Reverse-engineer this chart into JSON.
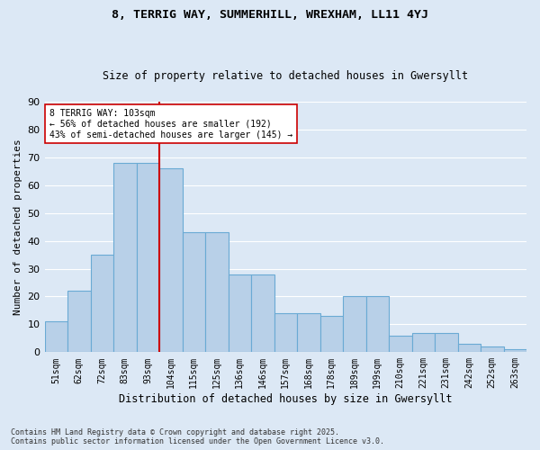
{
  "title1": "8, TERRIG WAY, SUMMERHILL, WREXHAM, LL11 4YJ",
  "title2": "Size of property relative to detached houses in Gwersyllt",
  "xlabel": "Distribution of detached houses by size in Gwersyllt",
  "ylabel": "Number of detached properties",
  "bars": [
    {
      "label": "51sqm",
      "value": 11
    },
    {
      "label": "62sqm",
      "value": 22
    },
    {
      "label": "72sqm",
      "value": 35
    },
    {
      "label": "83sqm",
      "value": 68
    },
    {
      "label": "93sqm",
      "value": 68
    },
    {
      "label": "104sqm",
      "value": 66
    },
    {
      "label": "115sqm",
      "value": 43
    },
    {
      "label": "125sqm",
      "value": 43
    },
    {
      "label": "136sqm",
      "value": 28
    },
    {
      "label": "146sqm",
      "value": 28
    },
    {
      "label": "157sqm",
      "value": 14
    },
    {
      "label": "168sqm",
      "value": 14
    },
    {
      "label": "178sqm",
      "value": 13
    },
    {
      "label": "189sqm",
      "value": 20
    },
    {
      "label": "199sqm",
      "value": 20
    },
    {
      "label": "210sqm",
      "value": 6
    },
    {
      "label": "221sqm",
      "value": 7
    },
    {
      "label": "231sqm",
      "value": 7
    },
    {
      "label": "242sqm",
      "value": 3
    },
    {
      "label": "252sqm",
      "value": 2
    },
    {
      "label": "263sqm",
      "value": 1
    }
  ],
  "bar_color": "#b8d0e8",
  "bar_edge_color": "#6aaad4",
  "vline_index": 5,
  "vline_color": "#cc0000",
  "annotation_text": "8 TERRIG WAY: 103sqm\n← 56% of detached houses are smaller (192)\n43% of semi-detached houses are larger (145) →",
  "annotation_box_color": "#ffffff",
  "annotation_box_edge": "#cc0000",
  "ylim": [
    0,
    90
  ],
  "yticks": [
    0,
    10,
    20,
    30,
    40,
    50,
    60,
    70,
    80,
    90
  ],
  "bg_color": "#dce8f5",
  "grid_color": "#ffffff",
  "footer": "Contains HM Land Registry data © Crown copyright and database right 2025.\nContains public sector information licensed under the Open Government Licence v3.0."
}
